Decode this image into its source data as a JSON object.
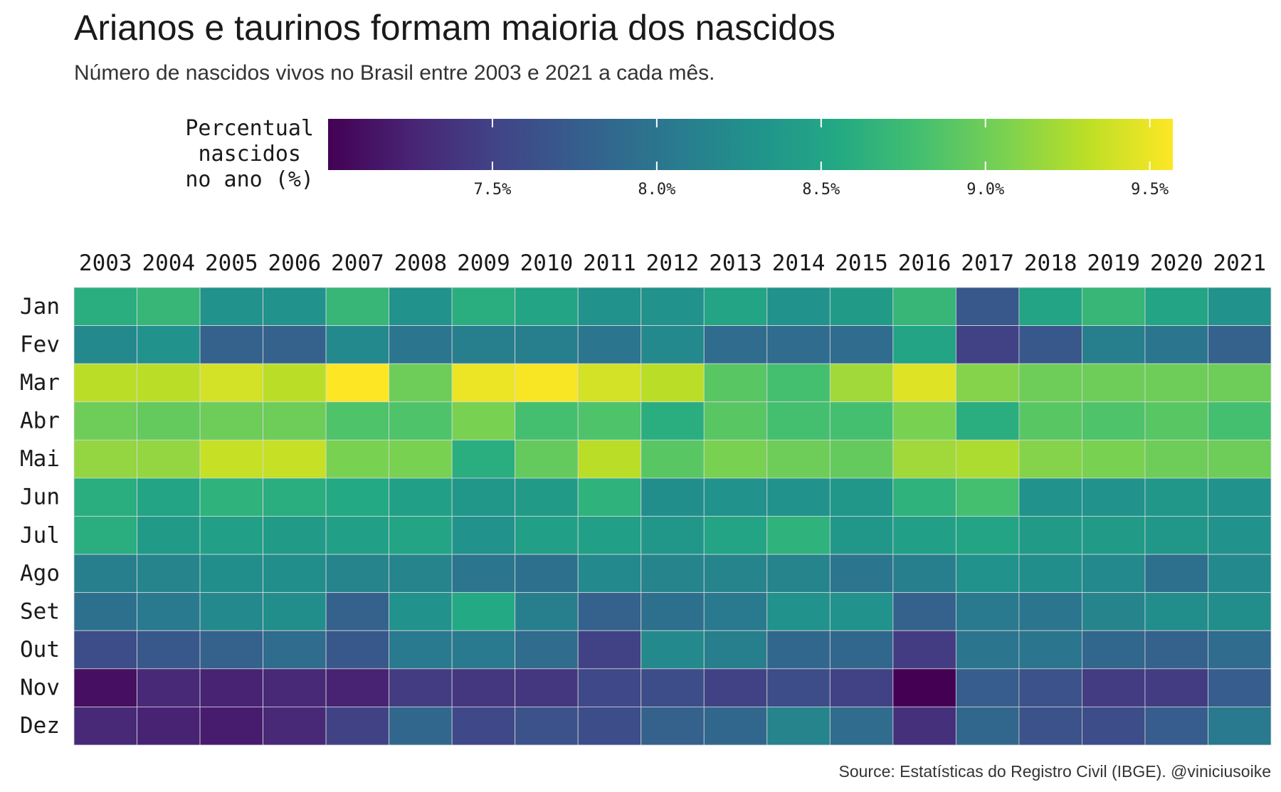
{
  "chart_data": {
    "type": "heatmap",
    "title": "Arianos e taurinos formam maioria dos nascidos",
    "subtitle": "Número de nascidos vivos no Brasil entre 2003 e 2021 a cada mês.",
    "legend": {
      "title_lines": [
        "Percentual",
        "nascidos",
        "no ano (%)"
      ],
      "placement": "top",
      "min": 7.0,
      "max": 9.57,
      "ticks": [
        7.5,
        8.0,
        8.5,
        9.0,
        9.5
      ],
      "tick_labels": [
        "7.5%",
        "8.0%",
        "8.5%",
        "9.0%",
        "9.5%"
      ]
    },
    "x": [
      "2003",
      "2004",
      "2005",
      "2006",
      "2007",
      "2008",
      "2009",
      "2010",
      "2011",
      "2012",
      "2013",
      "2014",
      "2015",
      "2016",
      "2017",
      "2018",
      "2019",
      "2020",
      "2021"
    ],
    "y": [
      "Jan",
      "Fev",
      "Mar",
      "Abr",
      "Mai",
      "Jun",
      "Jul",
      "Ago",
      "Set",
      "Out",
      "Nov",
      "Dez"
    ],
    "values": [
      [
        8.6,
        8.7,
        8.3,
        8.3,
        8.7,
        8.3,
        8.6,
        8.5,
        8.3,
        8.3,
        8.5,
        8.3,
        8.4,
        8.7,
        7.7,
        8.5,
        8.7,
        8.5,
        8.3
      ],
      [
        8.2,
        8.3,
        7.8,
        7.8,
        8.2,
        8.0,
        8.1,
        8.1,
        8.0,
        8.2,
        7.9,
        7.9,
        7.9,
        8.5,
        7.5,
        7.7,
        8.1,
        8.0,
        7.8
      ],
      [
        9.3,
        9.3,
        9.4,
        9.3,
        9.57,
        9.0,
        9.5,
        9.55,
        9.4,
        9.3,
        8.9,
        8.8,
        9.2,
        9.45,
        9.1,
        9.0,
        9.0,
        9.0,
        9.0
      ],
      [
        9.0,
        8.95,
        9.0,
        9.0,
        8.85,
        8.85,
        9.05,
        8.8,
        8.85,
        8.6,
        8.9,
        8.8,
        8.8,
        9.05,
        8.6,
        8.9,
        8.85,
        8.9,
        8.8
      ],
      [
        9.15,
        9.15,
        9.35,
        9.35,
        9.05,
        9.05,
        8.6,
        8.95,
        9.3,
        8.9,
        9.05,
        9.0,
        8.95,
        9.2,
        9.25,
        9.1,
        9.05,
        9.0,
        9.0
      ],
      [
        8.6,
        8.5,
        8.65,
        8.6,
        8.55,
        8.45,
        8.35,
        8.4,
        8.65,
        8.25,
        8.3,
        8.3,
        8.35,
        8.65,
        8.8,
        8.3,
        8.3,
        8.35,
        8.3
      ],
      [
        8.6,
        8.4,
        8.45,
        8.4,
        8.45,
        8.5,
        8.3,
        8.45,
        8.45,
        8.35,
        8.5,
        8.65,
        8.35,
        8.45,
        8.5,
        8.4,
        8.4,
        8.35,
        8.3
      ],
      [
        8.1,
        8.15,
        8.25,
        8.25,
        8.15,
        8.15,
        8.0,
        7.95,
        8.2,
        8.15,
        8.15,
        8.15,
        8.0,
        8.1,
        8.3,
        8.25,
        8.2,
        7.95,
        8.2
      ],
      [
        7.95,
        8.05,
        8.2,
        8.25,
        7.8,
        8.3,
        8.55,
        8.1,
        7.8,
        7.95,
        8.05,
        8.3,
        8.3,
        7.8,
        8.05,
        8.0,
        8.15,
        8.25,
        8.25
      ],
      [
        7.6,
        7.7,
        7.8,
        7.9,
        7.7,
        8.05,
        8.05,
        7.9,
        7.5,
        8.2,
        8.1,
        7.85,
        7.85,
        7.45,
        8.0,
        8.0,
        7.85,
        7.8,
        7.9
      ],
      [
        7.1,
        7.3,
        7.25,
        7.3,
        7.25,
        7.45,
        7.4,
        7.4,
        7.55,
        7.6,
        7.5,
        7.6,
        7.5,
        7.0,
        7.75,
        7.65,
        7.45,
        7.45,
        7.75
      ],
      [
        7.3,
        7.25,
        7.2,
        7.3,
        7.5,
        7.85,
        7.55,
        7.65,
        7.6,
        7.8,
        7.85,
        8.15,
        7.9,
        7.35,
        7.85,
        7.65,
        7.6,
        7.75,
        8.05
      ]
    ],
    "grid": false
  },
  "caption": "Source: Estatísticas do Registro Civil (IBGE). @viniciusoike"
}
